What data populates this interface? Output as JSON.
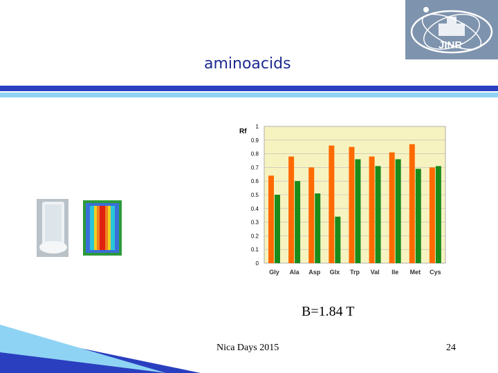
{
  "slide": {
    "title": "aminoacids",
    "caption": "B=1.84 T",
    "footer": "Nica Days 2015",
    "page_number": "24",
    "logo_text": "JINR"
  },
  "colors": {
    "title": "#1d2a8f",
    "series_1": "#ff6a00",
    "series_2": "#1a8a1a",
    "plot_bg": "#f7f3c0",
    "band_dark": "#2a3fbf",
    "band_light": "#8fd3f4"
  },
  "chart_data": {
    "type": "bar",
    "ylabel": "Rf",
    "ylim": [
      0,
      1
    ],
    "yticks": [
      "0",
      "0.1",
      "0.2",
      "0.3",
      "0.4",
      "0.5",
      "0.6",
      "0.7",
      "0.8",
      "0.9",
      "1"
    ],
    "categories": [
      "Gly",
      "Ala",
      "Asp",
      "Glx",
      "Trp",
      "Val",
      "Ile",
      "Met",
      "Cys"
    ],
    "series": [
      {
        "values": [
          0.64,
          0.78,
          0.7,
          0.86,
          0.85,
          0.78,
          0.81,
          0.87,
          0.7
        ]
      },
      {
        "values": [
          0.5,
          0.6,
          0.51,
          0.34,
          0.76,
          0.71,
          0.76,
          0.69,
          0.71
        ]
      }
    ],
    "grid": true,
    "legend": "none"
  }
}
